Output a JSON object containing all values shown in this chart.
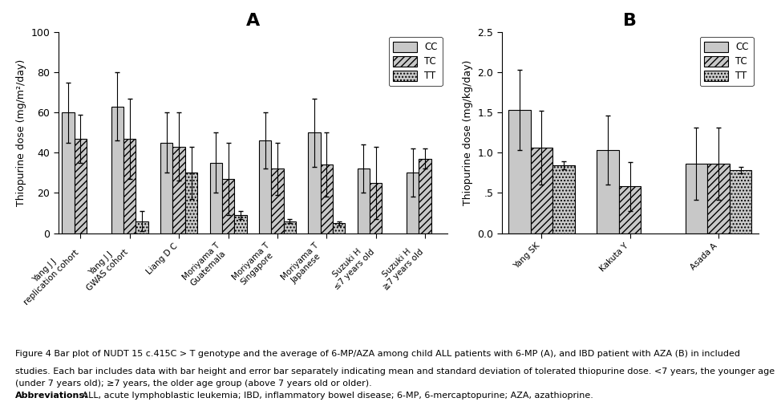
{
  "panel_A": {
    "title": "A",
    "ylabel": "Thiopurine dose (mg/m²/day)",
    "ylim": [
      0,
      100
    ],
    "yticks": [
      0,
      20,
      40,
      60,
      80,
      100
    ],
    "categories": [
      "Yang J J\nreplication cohort",
      "Yang J J\nGWAS cohort",
      "Liang D C",
      "Moriyama T\nGuatemala",
      "Moriyama T\nSingapore",
      "Moriyama T\nJapanese",
      "Suzuki H\n≤7 years old",
      "Suzuki H\n≧7 years old"
    ],
    "CC_mean": [
      60,
      63,
      45,
      35,
      46,
      50,
      32,
      30
    ],
    "CC_err": [
      15,
      17,
      15,
      15,
      14,
      17,
      12,
      12
    ],
    "TC_mean": [
      47,
      47,
      43,
      27,
      32,
      34,
      25,
      37
    ],
    "TC_err": [
      12,
      20,
      17,
      18,
      13,
      16,
      18,
      5
    ],
    "TT_mean": [
      null,
      6,
      30,
      9,
      6,
      5,
      null,
      null
    ],
    "TT_err": [
      null,
      5,
      13,
      2,
      1,
      1,
      null,
      null
    ]
  },
  "panel_B": {
    "title": "B",
    "ylabel": "Thiopurine dose (mg/kg/day)",
    "ylim": [
      0.0,
      2.5
    ],
    "yticks": [
      0.0,
      0.5,
      1.0,
      1.5,
      2.0,
      2.5
    ],
    "ytick_labels": [
      "0.0",
      ".5",
      "1.0",
      "1.5",
      "2.0",
      "2.5"
    ],
    "categories": [
      "Yang SK",
      "Kakuta Y",
      "Asada A"
    ],
    "CC_mean": [
      1.53,
      1.03,
      0.86
    ],
    "CC_err": [
      0.5,
      0.43,
      0.45
    ],
    "TC_mean": [
      1.06,
      0.58,
      0.86
    ],
    "TC_err": [
      0.46,
      0.3,
      0.45
    ],
    "TT_mean": [
      0.84,
      null,
      0.78
    ],
    "TT_err": [
      0.05,
      null,
      0.04
    ]
  },
  "caption_bold": "Figure 4",
  "caption_normal": " Bar plot of NUDT 15 c.415C > T genotype and the average of 6-MP/AZA among child ALL patients with 6-MP (",
  "caption_bold2": "A",
  "caption_normal2": "), and IBD patient with AZA (",
  "caption_bold3": "B",
  "caption_normal3": ") in included\nstudies. Each bar includes data with bar height and error bar separately indicating mean and standard deviation of tolerated thiopurine dose. <7 years, the younger age group\n(under 7 years old); ≥7 years, the older age group (above 7 years old or older).\n",
  "caption_abbrev_bold": "Abbreviations:",
  "caption_abbrev_normal": " ALL, acute lymphoblastic leukemia; IBD, inflammatory bowel disease; 6-MP, 6-mercaptopurine; AZA, azathioprine."
}
